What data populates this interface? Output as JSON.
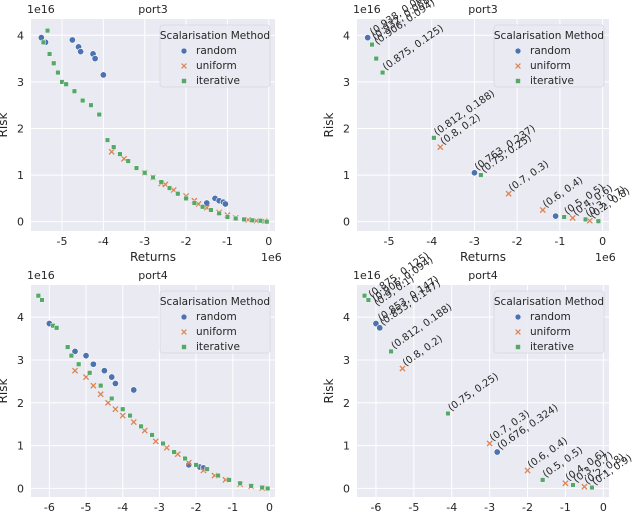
{
  "chart_data": [
    {
      "type": "scatter",
      "title": "port3",
      "xlabel": "Returns",
      "ylabel": "Risk",
      "x_offset_label": "1e6",
      "y_offset_label": "1e16",
      "xlim": [
        -5.75,
        0.15
      ],
      "ylim": [
        -0.2,
        4.35
      ],
      "xticks": [
        "-5",
        "-4",
        "-3",
        "-2",
        "-1",
        "0"
      ],
      "xtick_values": [
        -5,
        -4,
        -3,
        -2,
        -1,
        0
      ],
      "yticks": [
        "0",
        "1",
        "2",
        "3",
        "4"
      ],
      "ytick_values": [
        0,
        1,
        2,
        3,
        4
      ],
      "legend": {
        "title": "Scalarisation Method",
        "entries": [
          "random",
          "uniform",
          "iterative"
        ],
        "position": "upper right"
      },
      "series": [
        {
          "name": "random",
          "color": "#4c72b0",
          "marker": "circle",
          "points": [
            [
              -5.5,
              3.95
            ],
            [
              -5.4,
              3.85
            ],
            [
              -4.75,
              3.9
            ],
            [
              -4.6,
              3.75
            ],
            [
              -4.55,
              3.65
            ],
            [
              -4.25,
              3.6
            ],
            [
              -4.2,
              3.5
            ],
            [
              -4.0,
              3.15
            ],
            [
              -1.3,
              0.5
            ],
            [
              -1.2,
              0.45
            ],
            [
              -1.1,
              0.42
            ],
            [
              -1.05,
              0.38
            ],
            [
              -1.5,
              0.4
            ]
          ]
        },
        {
          "name": "uniform",
          "color": "#dd8452",
          "marker": "x",
          "points": [
            [
              -3.8,
              1.5
            ],
            [
              -3.5,
              1.35
            ],
            [
              -3.0,
              1.05
            ],
            [
              -2.8,
              0.95
            ],
            [
              -2.6,
              0.82
            ],
            [
              -2.5,
              0.8
            ],
            [
              -2.3,
              0.68
            ],
            [
              -2.0,
              0.55
            ],
            [
              -1.8,
              0.45
            ],
            [
              -1.7,
              0.38
            ],
            [
              -1.5,
              0.3
            ],
            [
              -1.2,
              0.2
            ],
            [
              -1.0,
              0.14
            ],
            [
              -0.8,
              0.08
            ],
            [
              -0.5,
              0.04
            ],
            [
              -0.3,
              0.02
            ],
            [
              -0.1,
              0.01
            ]
          ]
        },
        {
          "name": "iterative",
          "color": "#55a868",
          "marker": "square",
          "points": [
            [
              -5.35,
              4.1
            ],
            [
              -5.45,
              3.85
            ],
            [
              -5.3,
              3.6
            ],
            [
              -5.2,
              3.4
            ],
            [
              -5.1,
              3.2
            ],
            [
              -5.0,
              3.0
            ],
            [
              -4.9,
              2.95
            ],
            [
              -4.7,
              2.8
            ],
            [
              -4.5,
              2.6
            ],
            [
              -4.3,
              2.5
            ],
            [
              -4.1,
              2.3
            ],
            [
              -3.9,
              1.75
            ],
            [
              -3.75,
              1.6
            ],
            [
              -3.6,
              1.45
            ],
            [
              -3.4,
              1.3
            ],
            [
              -3.2,
              1.15
            ],
            [
              -3.0,
              1.05
            ],
            [
              -2.8,
              0.95
            ],
            [
              -2.6,
              0.85
            ],
            [
              -2.4,
              0.72
            ],
            [
              -2.2,
              0.6
            ],
            [
              -2.0,
              0.5
            ],
            [
              -1.8,
              0.4
            ],
            [
              -1.6,
              0.32
            ],
            [
              -1.4,
              0.25
            ],
            [
              -1.2,
              0.18
            ],
            [
              -1.0,
              0.1
            ],
            [
              -0.8,
              0.07
            ],
            [
              -0.6,
              0.05
            ],
            [
              -0.4,
              0.03
            ],
            [
              -0.2,
              0.02
            ],
            [
              -0.05,
              0.0
            ]
          ]
        }
      ],
      "annotations": []
    },
    {
      "type": "scatter",
      "title": "port3",
      "xlabel": "Returns",
      "ylabel": "Risk",
      "x_offset_label": "1e6",
      "y_offset_label": "1e16",
      "xlim": [
        -5.75,
        0.15
      ],
      "ylim": [
        -0.2,
        4.35
      ],
      "xticks": [
        "-5",
        "-4",
        "-3",
        "-2",
        "-1",
        "0"
      ],
      "xtick_values": [
        -5,
        -4,
        -3,
        -2,
        -1,
        0
      ],
      "yticks": [
        "0",
        "1",
        "2",
        "3",
        "4"
      ],
      "ytick_values": [
        0,
        1,
        2,
        3,
        4
      ],
      "legend": {
        "title": "Scalarisation Method",
        "entries": [
          "random",
          "uniform",
          "iterative"
        ],
        "position": "upper right"
      },
      "series": [
        {
          "name": "random",
          "color": "#4c72b0",
          "marker": "circle",
          "points": [
            [
              -5.5,
              3.95
            ],
            [
              -3.0,
              1.05
            ],
            [
              -1.1,
              0.12
            ]
          ]
        },
        {
          "name": "uniform",
          "color": "#dd8452",
          "marker": "x",
          "points": [
            [
              -3.8,
              1.6
            ],
            [
              -2.2,
              0.6
            ],
            [
              -1.4,
              0.25
            ],
            [
              -0.7,
              0.08
            ],
            [
              -0.3,
              0.02
            ]
          ]
        },
        {
          "name": "iterative",
          "color": "#55a868",
          "marker": "square",
          "points": [
            [
              -5.4,
              3.8
            ],
            [
              -5.3,
              3.5
            ],
            [
              -5.15,
              3.2
            ],
            [
              -3.95,
              1.8
            ],
            [
              -2.85,
              1.0
            ],
            [
              -0.9,
              0.1
            ],
            [
              -0.4,
              0.05
            ],
            [
              -0.1,
              0.01
            ]
          ]
        }
      ],
      "annotations": [
        {
          "text": "(0.938, 0.062)",
          "x": -5.45,
          "y": 3.95
        },
        {
          "text": "(0.932, 0.068)",
          "x": -5.4,
          "y": 3.85
        },
        {
          "text": "(0.906, 0.094)",
          "x": -5.35,
          "y": 3.75
        },
        {
          "text": "(0.875, 0.125)",
          "x": -5.15,
          "y": 3.2
        },
        {
          "text": "(0.812, 0.188)",
          "x": -3.95,
          "y": 1.8
        },
        {
          "text": "(0.8, 0.2)",
          "x": -3.8,
          "y": 1.6
        },
        {
          "text": "(0.763, 0.237)",
          "x": -3.0,
          "y": 1.05
        },
        {
          "text": "(0.75, 0.25)",
          "x": -2.85,
          "y": 1.0
        },
        {
          "text": "(0.7, 0.3)",
          "x": -2.2,
          "y": 0.6
        },
        {
          "text": "(0.6, 0.4)",
          "x": -1.4,
          "y": 0.25
        },
        {
          "text": "(0.5, 0.5)",
          "x": -0.9,
          "y": 0.1
        },
        {
          "text": "(0.4, 0.6)",
          "x": -0.7,
          "y": 0.08
        },
        {
          "text": "(0.3, 0.7)",
          "x": -0.4,
          "y": 0.05
        },
        {
          "text": "(0.2, 0.8)",
          "x": -0.3,
          "y": 0.02
        }
      ]
    },
    {
      "type": "scatter",
      "title": "port4",
      "xlabel": "Returns",
      "ylabel": "Risk",
      "x_offset_label": "1e6",
      "y_offset_label": "1e16",
      "xlim": [
        -6.5,
        0.15
      ],
      "ylim": [
        -0.2,
        4.75
      ],
      "xticks": [
        "-6",
        "-5",
        "-4",
        "-3",
        "-2",
        "-1",
        "0"
      ],
      "xtick_values": [
        -6,
        -5,
        -4,
        -3,
        -2,
        -1,
        0
      ],
      "yticks": [
        "0",
        "1",
        "2",
        "3",
        "4"
      ],
      "ytick_values": [
        0,
        1,
        2,
        3,
        4
      ],
      "legend": {
        "title": "Scalarisation Method",
        "entries": [
          "random",
          "uniform",
          "iterative"
        ],
        "position": "upper right"
      },
      "series": [
        {
          "name": "random",
          "color": "#4c72b0",
          "marker": "circle",
          "points": [
            [
              -6.0,
              3.85
            ],
            [
              -5.3,
              3.2
            ],
            [
              -5.0,
              3.1
            ],
            [
              -4.8,
              2.9
            ],
            [
              -4.5,
              2.75
            ],
            [
              -4.3,
              2.6
            ],
            [
              -4.2,
              2.45
            ],
            [
              -3.7,
              2.3
            ],
            [
              -2.2,
              0.55
            ],
            [
              -1.9,
              0.5
            ],
            [
              -1.8,
              0.48
            ]
          ]
        },
        {
          "name": "uniform",
          "color": "#dd8452",
          "marker": "x",
          "points": [
            [
              -5.3,
              2.75
            ],
            [
              -5.0,
              2.6
            ],
            [
              -4.8,
              2.4
            ],
            [
              -4.6,
              2.2
            ],
            [
              -4.4,
              2.0
            ],
            [
              -4.2,
              1.85
            ],
            [
              -4.0,
              1.7
            ],
            [
              -3.7,
              1.55
            ],
            [
              -3.4,
              1.35
            ],
            [
              -3.1,
              1.1
            ],
            [
              -2.8,
              0.95
            ],
            [
              -2.5,
              0.8
            ],
            [
              -2.2,
              0.6
            ],
            [
              -1.8,
              0.42
            ],
            [
              -1.5,
              0.3
            ],
            [
              -1.2,
              0.2
            ],
            [
              -0.8,
              0.1
            ],
            [
              -0.5,
              0.05
            ],
            [
              -0.2,
              0.01
            ]
          ]
        },
        {
          "name": "iterative",
          "color": "#55a868",
          "marker": "square",
          "points": [
            [
              -6.3,
              4.5
            ],
            [
              -6.2,
              4.4
            ],
            [
              -5.9,
              3.8
            ],
            [
              -5.8,
              3.75
            ],
            [
              -5.5,
              3.3
            ],
            [
              -5.4,
              3.1
            ],
            [
              -5.2,
              2.9
            ],
            [
              -4.9,
              2.7
            ],
            [
              -4.6,
              2.4
            ],
            [
              -4.3,
              2.1
            ],
            [
              -4.0,
              1.85
            ],
            [
              -3.8,
              1.7
            ],
            [
              -3.5,
              1.45
            ],
            [
              -3.2,
              1.25
            ],
            [
              -2.9,
              1.05
            ],
            [
              -2.6,
              0.85
            ],
            [
              -2.3,
              0.7
            ],
            [
              -2.0,
              0.55
            ],
            [
              -1.7,
              0.45
            ],
            [
              -1.4,
              0.3
            ],
            [
              -1.1,
              0.2
            ],
            [
              -0.8,
              0.12
            ],
            [
              -0.5,
              0.06
            ],
            [
              -0.2,
              0.02
            ],
            [
              -0.05,
              0.0
            ]
          ]
        }
      ],
      "annotations": []
    },
    {
      "type": "scatter",
      "title": "port4",
      "xlabel": "Returns",
      "ylabel": "Risk",
      "x_offset_label": "1e6",
      "y_offset_label": "1e16",
      "xlim": [
        -6.5,
        0.15
      ],
      "ylim": [
        -0.2,
        4.75
      ],
      "xticks": [
        "-6",
        "-5",
        "-4",
        "-3",
        "-2",
        "-1",
        "0"
      ],
      "xtick_values": [
        -6,
        -5,
        -4,
        -3,
        -2,
        -1,
        0
      ],
      "yticks": [
        "0",
        "1",
        "2",
        "3",
        "4"
      ],
      "ytick_values": [
        0,
        1,
        2,
        3,
        4
      ],
      "legend": {
        "title": "Scalarisation Method",
        "entries": [
          "random",
          "uniform",
          "iterative"
        ],
        "position": "upper right"
      },
      "series": [
        {
          "name": "random",
          "color": "#4c72b0",
          "marker": "circle",
          "points": [
            [
              -6.0,
              3.85
            ],
            [
              -5.9,
              3.75
            ],
            [
              -2.8,
              0.85
            ]
          ]
        },
        {
          "name": "uniform",
          "color": "#dd8452",
          "marker": "x",
          "points": [
            [
              -5.3,
              2.8
            ],
            [
              -3.0,
              1.05
            ],
            [
              -2.0,
              0.42
            ],
            [
              -1.0,
              0.12
            ],
            [
              -0.5,
              0.04
            ]
          ]
        },
        {
          "name": "iterative",
          "color": "#55a868",
          "marker": "square",
          "points": [
            [
              -6.3,
              4.5
            ],
            [
              -6.2,
              4.4
            ],
            [
              -5.6,
              3.2
            ],
            [
              -4.1,
              1.75
            ],
            [
              -1.6,
              0.2
            ],
            [
              -0.8,
              0.08
            ],
            [
              -0.3,
              0.02
            ]
          ]
        }
      ],
      "annotations": [
        {
          "text": "(0.875, 0.125)",
          "x": -6.2,
          "y": 4.4
        },
        {
          "text": "(0.906, 0.094)",
          "x": -6.1,
          "y": 4.3
        },
        {
          "text": "(0.9, 0.1)",
          "x": -6.05,
          "y": 4.2
        },
        {
          "text": "(0.853, 0.147)",
          "x": -5.95,
          "y": 3.85
        },
        {
          "text": "(0.853, 0.147)",
          "x": -5.9,
          "y": 3.75
        },
        {
          "text": "(0.812, 0.188)",
          "x": -5.6,
          "y": 3.2
        },
        {
          "text": "(0.8, 0.2)",
          "x": -5.3,
          "y": 2.8
        },
        {
          "text": "(0.75, 0.25)",
          "x": -4.1,
          "y": 1.75
        },
        {
          "text": "(0.7, 0.3)",
          "x": -3.0,
          "y": 1.05
        },
        {
          "text": "(0.676, 0.324)",
          "x": -2.8,
          "y": 0.85
        },
        {
          "text": "(0.6, 0.4)",
          "x": -2.0,
          "y": 0.42
        },
        {
          "text": "(0.5, 0.5)",
          "x": -1.6,
          "y": 0.2
        },
        {
          "text": "(0.4, 0.6)",
          "x": -1.0,
          "y": 0.12
        },
        {
          "text": "(0.3, 0.7)",
          "x": -0.8,
          "y": 0.08
        },
        {
          "text": "(0.2, 0.8)",
          "x": -0.5,
          "y": 0.04
        },
        {
          "text": "(0.1, 0.9)",
          "x": -0.3,
          "y": 0.02
        }
      ]
    }
  ]
}
